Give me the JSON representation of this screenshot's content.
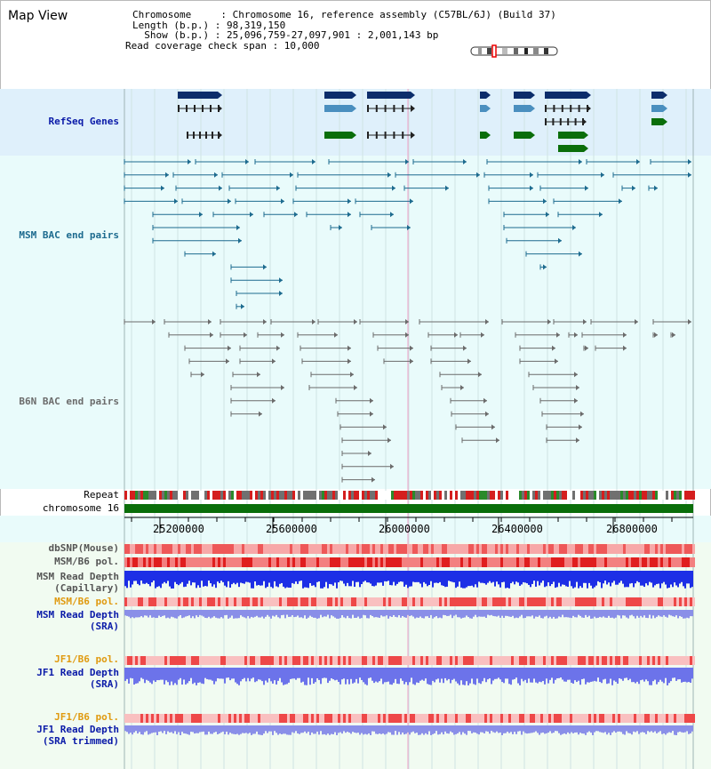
{
  "title": "Map View",
  "info": {
    "chromosome": "Chromosome     : Chromosome 16, reference assembly (C57BL/6J) (Build 37)",
    "length": "Length (b.p.) : 98,319,150",
    "show": "  Show (b.p.) : 25,096,759-27,097,901 : 2,001,143 bp",
    "coverage": "Read coverage check span : 10,000"
  },
  "tracks": {
    "refseq": "RefSeq Genes",
    "msm_bac": "MSM BAC end pairs",
    "b6n_bac": "B6N BAC end pairs",
    "repeat": "Repeat",
    "chromosome": "chromosome 16",
    "dbsnp": "dbSNP(Mouse)",
    "msm_b6_pol": "MSM/B6 pol.",
    "msm_depth_cap_1": "MSM Read Depth",
    "msm_depth_cap_2": "(Capillary)",
    "msm_b6_pol_2": "MSM/B6 pol.",
    "msm_depth_sra_1": "MSM Read Depth",
    "msm_depth_sra_2": "(SRA)",
    "jf1_b6_pol": "JF1/B6 pol.",
    "jf1_depth_sra_1": "JF1 Read Depth",
    "jf1_depth_sra_2": "(SRA)",
    "jf1_b6_pol_2": "JF1/B6 pol.",
    "jf1_depth_trim_1": "JF1 Read Depth",
    "jf1_depth_trim_2": "(SRA trimmed)"
  },
  "axis": {
    "ticks": [
      "25200000",
      "25600000",
      "26000000",
      "26400000",
      "26800000"
    ]
  },
  "colors": {
    "refseq_bg": "#dff0fb",
    "bac_bg": "#e9fbfb",
    "depth_bg": "#f1fbf1",
    "gene_blue": "#0c2d6b",
    "gene_light": "#4a8fbf",
    "gene_green": "#0a6e0a",
    "msm_line": "#1d6b8f",
    "b6n_line": "#6b6b6b",
    "pol_red": "#e23a3a",
    "depth_blue": "#1d2fe6",
    "depth_light": "#8a8fe8",
    "label_blue": "#0a1aa8",
    "label_orange": "#e09a10"
  }
}
